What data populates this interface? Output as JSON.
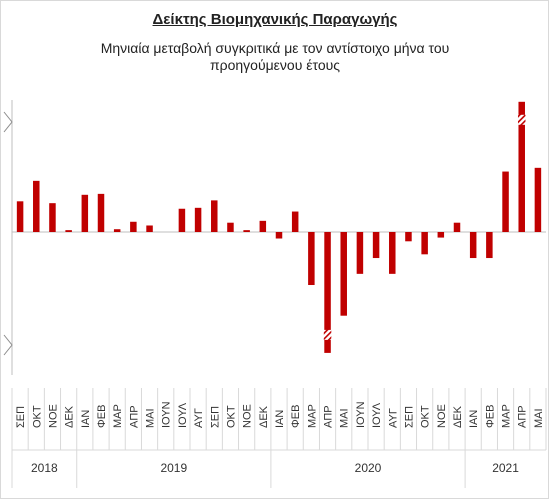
{
  "title": "Δείκτης Βιομηχανικής Παραγωγής",
  "subtitle": "Μηνιαία μεταβολή συγκριτικά με τον αντίστοιχο μήνα του προηγούμενου έτους",
  "chart_data": {
    "type": "bar",
    "title": "Δείκτης Βιομηχανικής Παραγωγής",
    "subtitle": "Μηνιαία μεταβολή συγκριτικά με τον αντίστοιχο μήνα του προηγούμενου έτους",
    "categories": [
      "ΣΕΠ",
      "ΟΚΤ",
      "ΝΟΕ",
      "ΔΕΚ",
      "ΙΑΝ",
      "ΦΕΒ",
      "ΜΑΡ",
      "ΑΠΡ",
      "ΜΑΙ",
      "ΙΟΥΝ",
      "ΙΟΥΛ",
      "ΑΥΓ",
      "ΣΕΠ",
      "ΟΚΤ",
      "ΝΟΕ",
      "ΔΕΚ",
      "ΙΑΝ",
      "ΦΕΒ",
      "ΜΑΡ",
      "ΑΠΡ",
      "ΜΑΙ",
      "ΙΟΥΝ",
      "ΙΟΥΛ",
      "ΑΥΓ",
      "ΣΕΠ",
      "ΟΚΤ",
      "ΝΟΕ",
      "ΔΕΚ",
      "ΙΑΝ",
      "ΦΕΒ",
      "ΜΑΡ",
      "ΑΠΡ",
      "ΜΑΙ"
    ],
    "year_groups": [
      {
        "label": "2018",
        "count": 4
      },
      {
        "label": "2019",
        "count": 12
      },
      {
        "label": "2020",
        "count": 12
      },
      {
        "label": "2021",
        "count": 5
      }
    ],
    "series": [
      {
        "values": [
          3.3,
          5.5,
          3.1,
          0.2,
          4.0,
          4.1,
          0.3,
          1.1,
          0.7,
          0.0,
          2.5,
          2.6,
          3.4,
          1.0,
          0.2,
          1.2,
          -0.7,
          2.2,
          -5.7,
          -13.0,
          -9.0,
          -4.5,
          -2.8,
          -4.5,
          -1.0,
          -2.4,
          -0.6,
          1.0,
          -2.8,
          -2.8,
          6.5,
          14.0,
          6.9
        ]
      }
    ],
    "break_in_bars": [
      "ΑΠΡ 2020",
      "ΑΠΡ 2021"
    ],
    "axis_break_on_y": true,
    "bar_color": "#c00000",
    "grid": false,
    "legend": "none"
  }
}
